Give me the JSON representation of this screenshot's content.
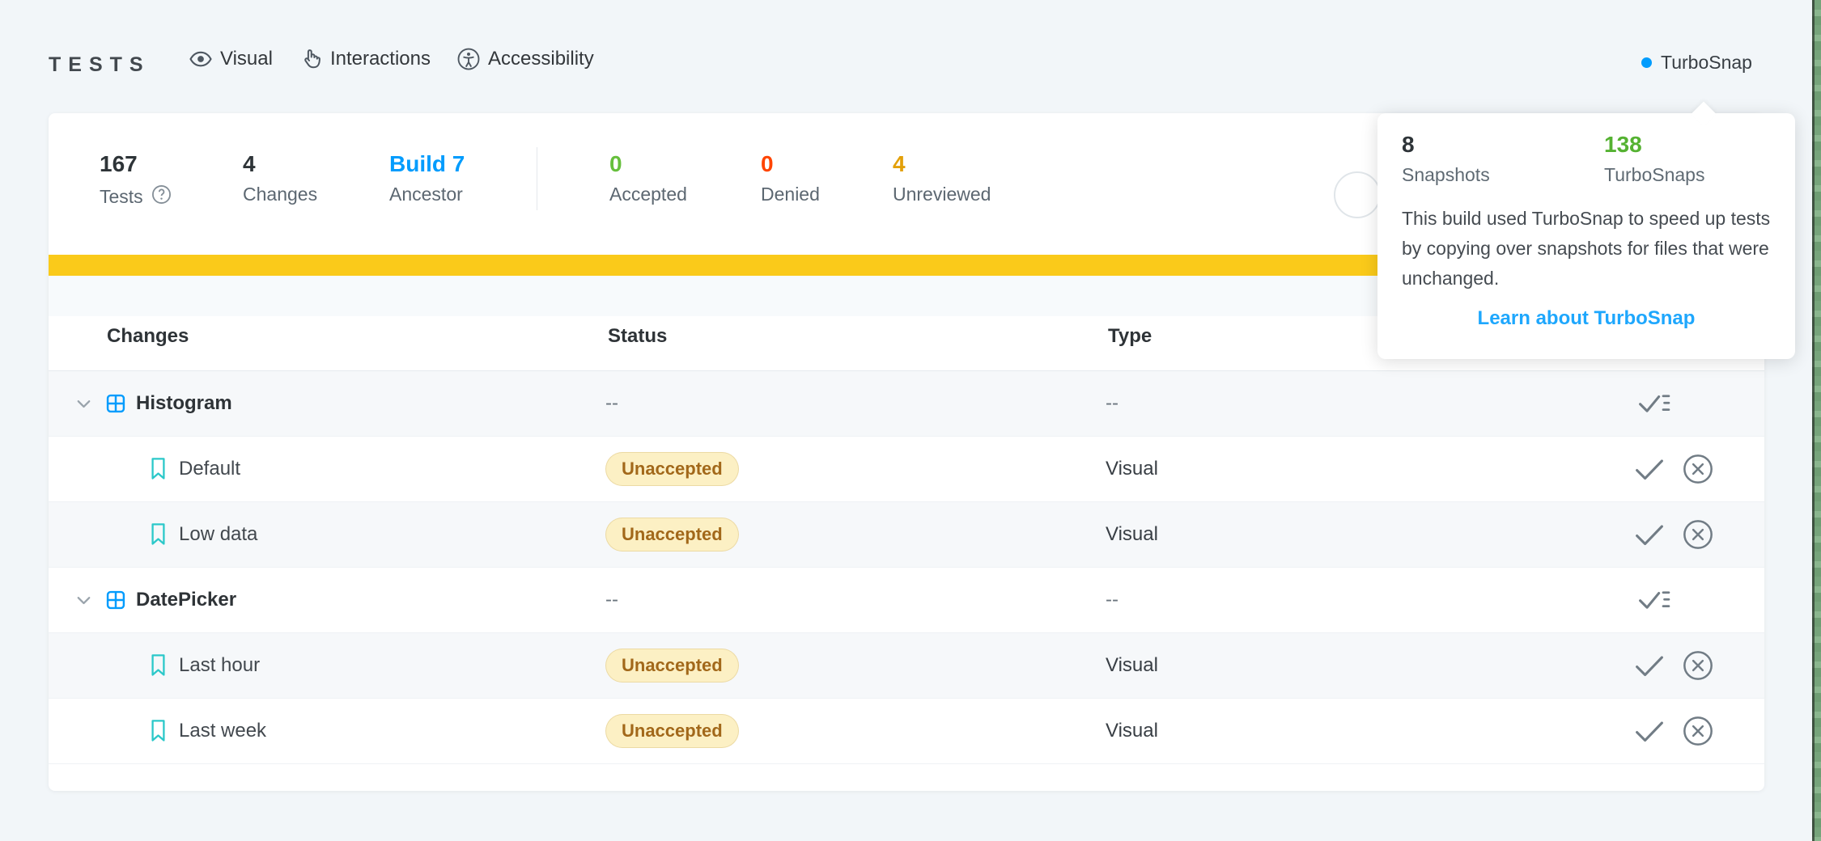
{
  "header": {
    "title": "TESTS",
    "tabs": [
      {
        "label": "Visual",
        "icon": "eye-icon"
      },
      {
        "label": "Interactions",
        "icon": "pointer-hand-icon"
      },
      {
        "label": "Accessibility",
        "icon": "accessibility-icon"
      }
    ],
    "turbosnap": {
      "label": "TurboSnap",
      "dot_color": "#029CFD"
    }
  },
  "stats": {
    "items": [
      {
        "value": "167",
        "label": "Tests",
        "color": "#2E3438",
        "has_help_icon": true
      },
      {
        "value": "4",
        "label": "Changes",
        "color": "#2E3438"
      },
      {
        "value": "Build 7",
        "label": "Ancestor",
        "color": "#029CFD",
        "link": true
      },
      {
        "value": "0",
        "label": "Accepted",
        "color": "#66BF3C"
      },
      {
        "value": "0",
        "label": "Denied",
        "color": "#FF4400"
      },
      {
        "value": "4",
        "label": "Unreviewed",
        "color": "#E3A008"
      }
    ]
  },
  "progress_bar": {
    "color": "#FACA1A"
  },
  "table": {
    "columns": [
      "Changes",
      "Status",
      "Type"
    ],
    "badge": {
      "bg": "#FCF0C4",
      "text": "#A2681A"
    },
    "rows": [
      {
        "kind": "component",
        "name": "Histogram",
        "status": "--",
        "type": "--"
      },
      {
        "kind": "story",
        "name": "Default",
        "status": "Unaccepted",
        "type": "Visual"
      },
      {
        "kind": "story",
        "name": "Low data",
        "status": "Unaccepted",
        "type": "Visual"
      },
      {
        "kind": "component",
        "name": "DatePicker",
        "status": "--",
        "type": "--"
      },
      {
        "kind": "story",
        "name": "Last hour",
        "status": "Unaccepted",
        "type": "Visual"
      },
      {
        "kind": "story",
        "name": "Last week",
        "status": "Unaccepted",
        "type": "Visual"
      }
    ]
  },
  "popover": {
    "stats": [
      {
        "value": "8",
        "label": "Snapshots",
        "color": "#2E3438"
      },
      {
        "value": "138",
        "label": "TurboSnaps",
        "color": "#55B232"
      }
    ],
    "description": "This build used TurboSnap to speed up tests by copying over snapshots for files that were unchanged.",
    "link_label": "Learn about TurboSnap",
    "link_color": "#1EA7FD"
  }
}
